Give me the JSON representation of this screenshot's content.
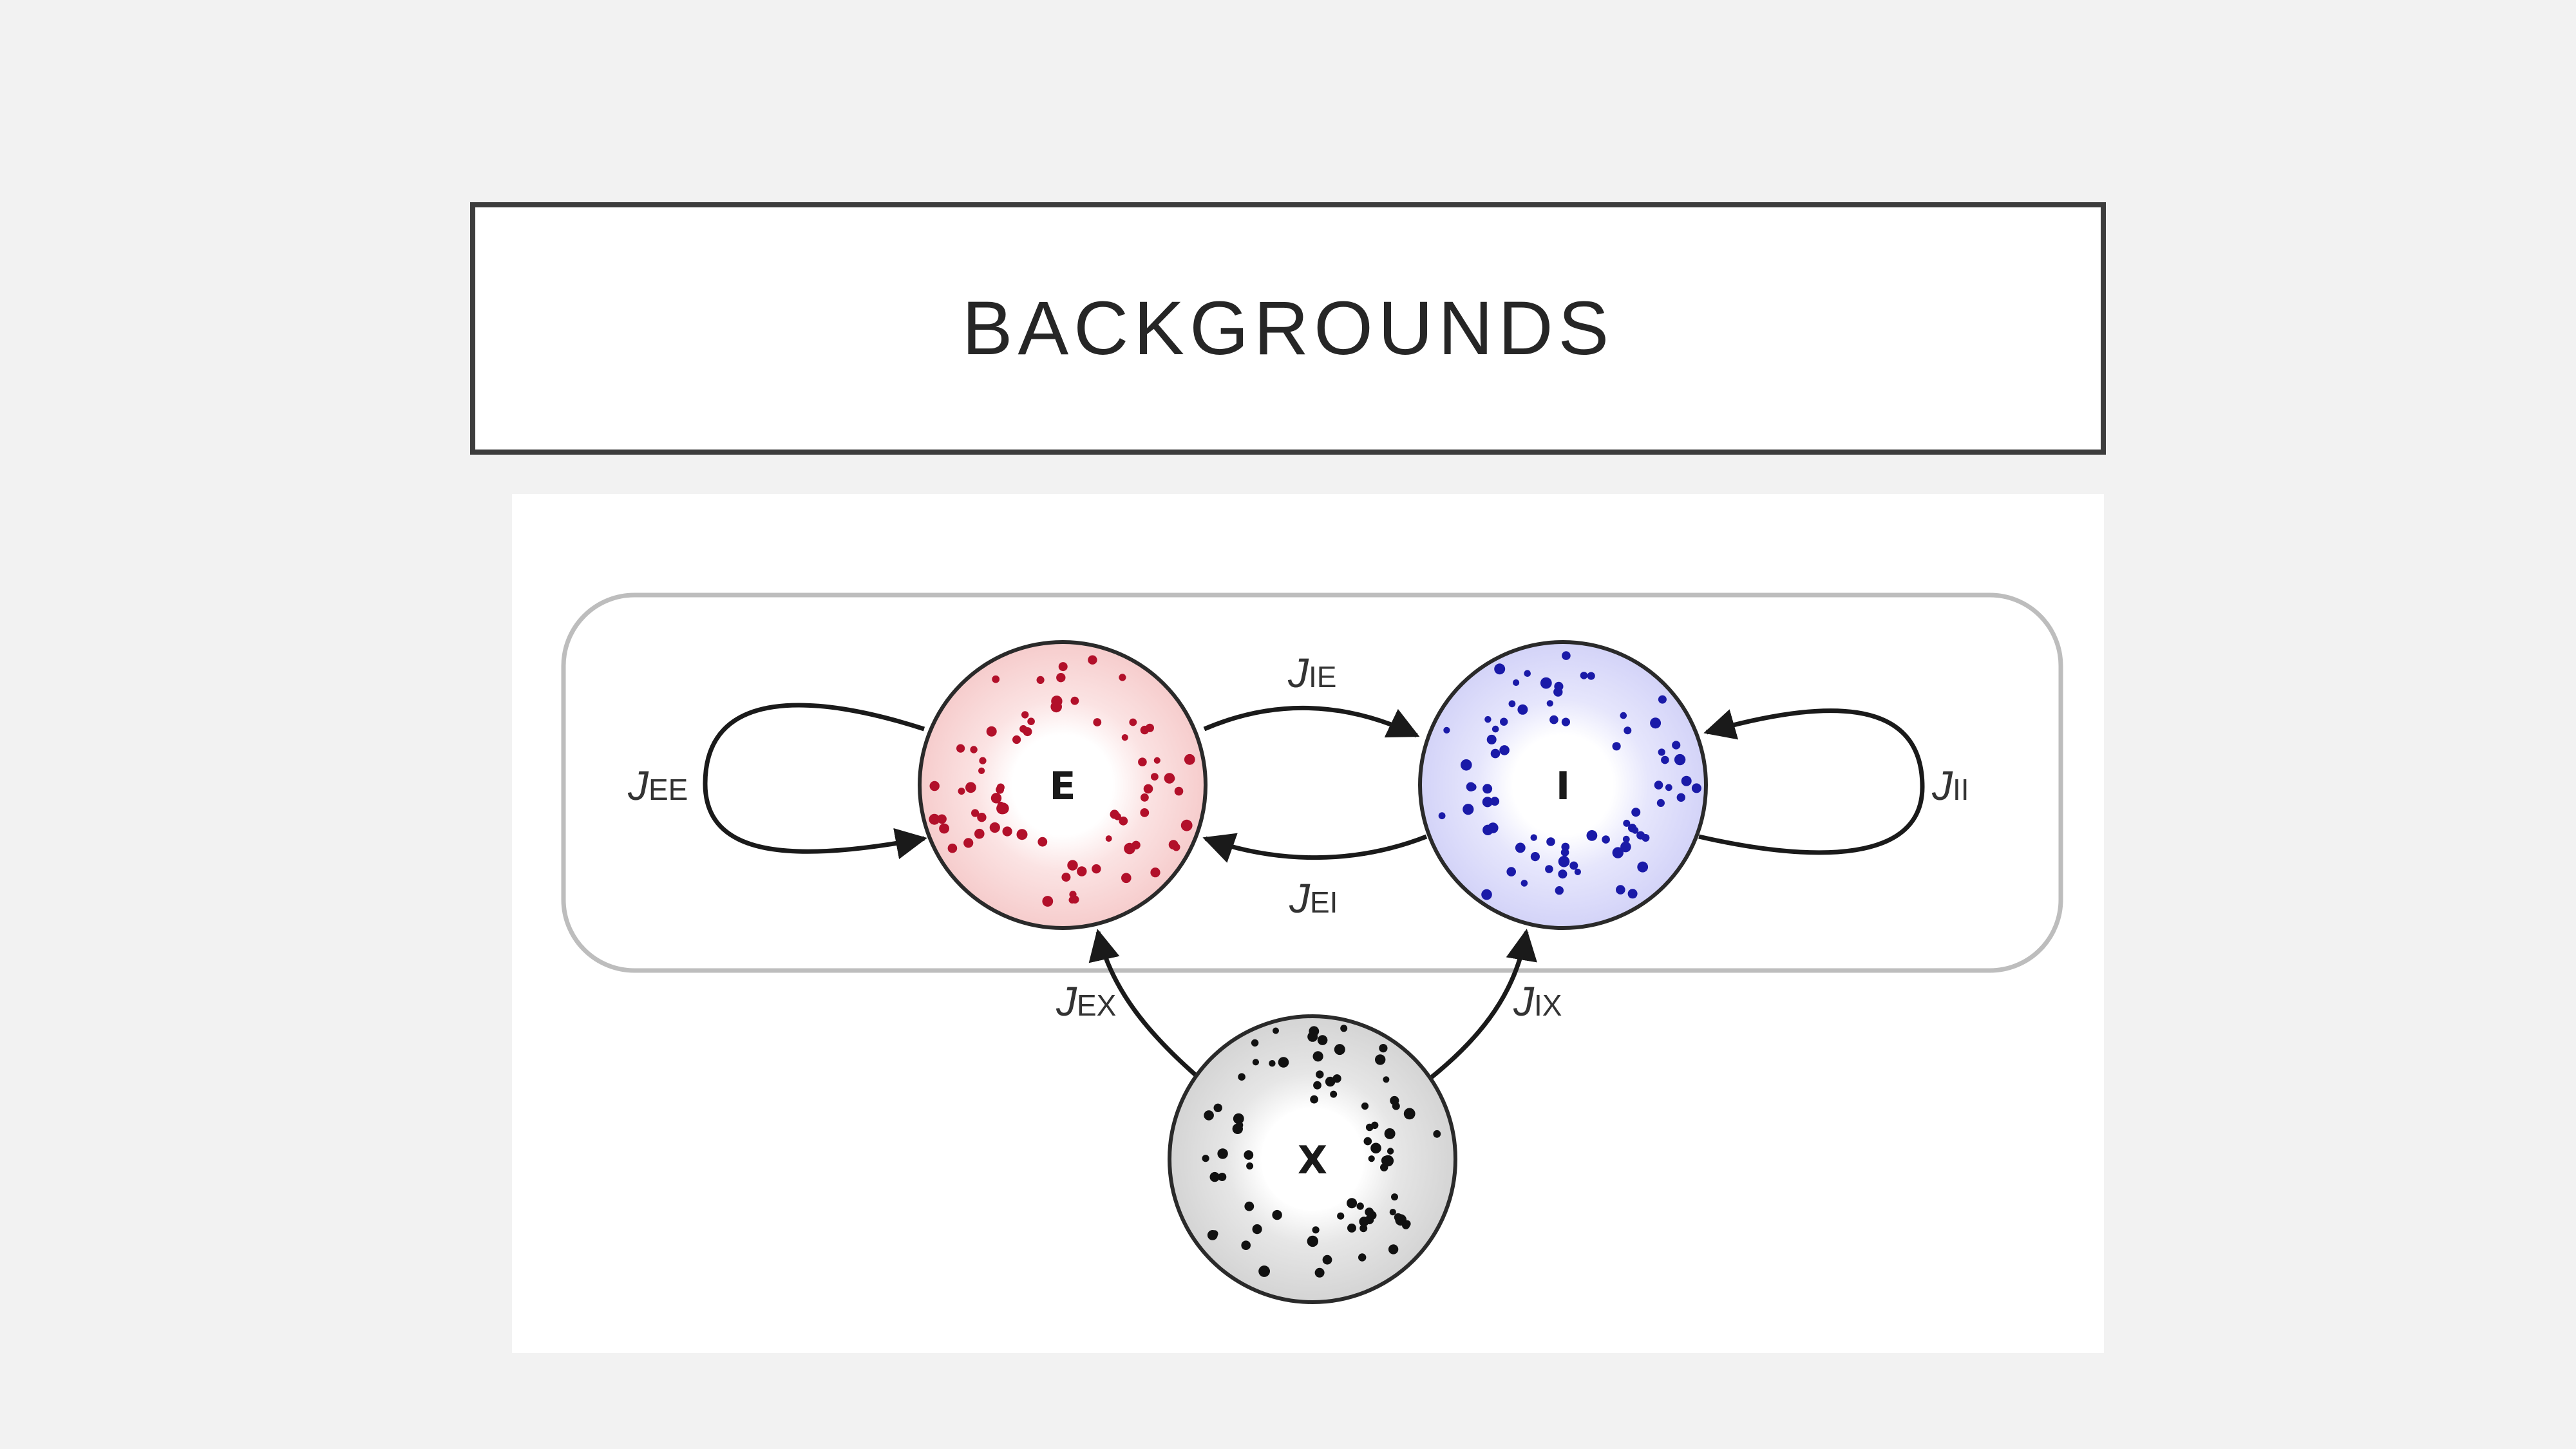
{
  "slide": {
    "title": "BACKGROUNDS"
  },
  "diagram": {
    "nodes": [
      {
        "id": "E",
        "label": "E",
        "fill": "#f9d6d6",
        "dot_color": "#b2102a"
      },
      {
        "id": "I",
        "label": "I",
        "fill": "#dcdcfb",
        "dot_color": "#1a1aa8"
      },
      {
        "id": "X",
        "label": "X",
        "fill": "#d9d9d9",
        "dot_color": "#111111"
      }
    ],
    "edges": [
      {
        "id": "EE",
        "from": "E",
        "to": "E",
        "label_main": "J",
        "label_sub": "EE"
      },
      {
        "id": "IE",
        "from": "E",
        "to": "I",
        "label_main": "J",
        "label_sub": "IE"
      },
      {
        "id": "EI",
        "from": "I",
        "to": "E",
        "label_main": "J",
        "label_sub": "EI"
      },
      {
        "id": "II",
        "from": "I",
        "to": "I",
        "label_main": "J",
        "label_sub": "II"
      },
      {
        "id": "EX",
        "from": "X",
        "to": "E",
        "label_main": "J",
        "label_sub": "EX"
      },
      {
        "id": "IX",
        "from": "X",
        "to": "I",
        "label_main": "J",
        "label_sub": "IX"
      }
    ]
  }
}
